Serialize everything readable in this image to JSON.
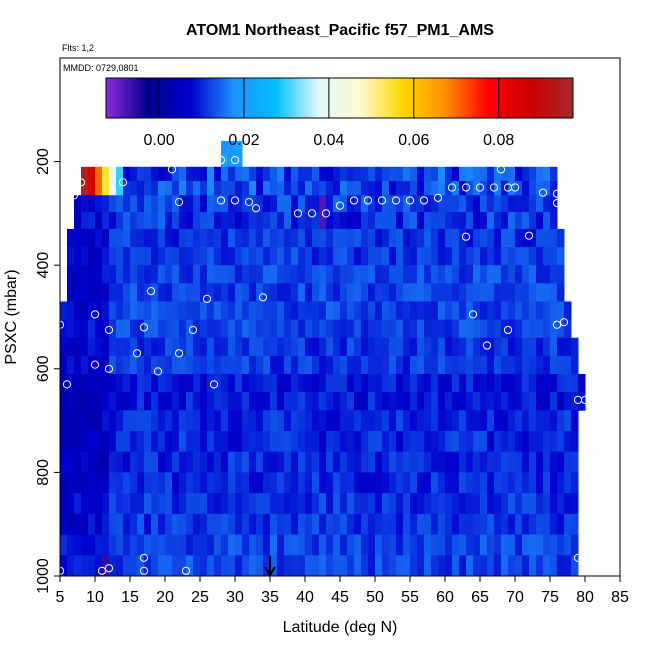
{
  "chart_data": {
    "type": "heatmap",
    "title": "ATOM1 Northeast_Pacific f57_PM1_AMS",
    "flights_note": "Flts: 1,2",
    "date_note": "MMDD: 0729,0801",
    "xlabel": "Latitude (deg N)",
    "ylabel": "PSXC (mbar)",
    "xlim": [
      5,
      85
    ],
    "ylim": [
      1000,
      0
    ],
    "x_ticks": [
      5,
      10,
      15,
      20,
      25,
      30,
      35,
      40,
      45,
      50,
      55,
      60,
      65,
      70,
      75,
      80,
      85
    ],
    "y_ticks": [
      200,
      400,
      600,
      800,
      1000
    ],
    "colorbar": {
      "range": [
        -0.0125,
        0.0975
      ],
      "ticks": [
        0.0,
        0.02,
        0.04,
        0.06,
        0.08
      ],
      "tick_labels": [
        "0.00",
        "0.02",
        "0.04",
        "0.06",
        "0.08"
      ],
      "stops": [
        "#8a2be2",
        "#00008b",
        "#0000cd",
        "#1e90ff",
        "#00bfff",
        "#e0f8ff",
        "#fffacd",
        "#ffd700",
        "#ff8c00",
        "#ff0000",
        "#cc0000",
        "#a52a2a"
      ]
    },
    "arrow_x": 35,
    "bands": [
      {
        "p0": 160,
        "p1": 210,
        "x0": 28,
        "x1": 31,
        "base": 0.02,
        "var": 0.003
      },
      {
        "p0": 210,
        "p1": 265,
        "x0": 8,
        "x1": 76,
        "base": 0.012,
        "var": 0.005
      },
      {
        "p0": 265,
        "p1": 330,
        "x0": 7,
        "x1": 76,
        "base": 0.011,
        "var": 0.004
      },
      {
        "p0": 330,
        "p1": 400,
        "x0": 6,
        "x1": 77,
        "base": 0.011,
        "var": 0.003
      },
      {
        "p0": 400,
        "p1": 470,
        "x0": 6,
        "x1": 77,
        "base": 0.012,
        "var": 0.003
      },
      {
        "p0": 470,
        "p1": 540,
        "x0": 5,
        "x1": 78,
        "base": 0.012,
        "var": 0.003
      },
      {
        "p0": 540,
        "p1": 610,
        "x0": 5,
        "x1": 79,
        "base": 0.011,
        "var": 0.003
      },
      {
        "p0": 610,
        "p1": 680,
        "x0": 5,
        "x1": 80,
        "base": 0.009,
        "var": 0.003
      },
      {
        "p0": 680,
        "p1": 760,
        "x0": 5,
        "x1": 79,
        "base": 0.01,
        "var": 0.003
      },
      {
        "p0": 760,
        "p1": 840,
        "x0": 5,
        "x1": 79,
        "base": 0.01,
        "var": 0.003
      },
      {
        "p0": 840,
        "p1": 920,
        "x0": 5,
        "x1": 79,
        "base": 0.011,
        "var": 0.003
      },
      {
        "p0": 920,
        "p1": 1000,
        "x0": 5,
        "x1": 79,
        "base": 0.012,
        "var": 0.003
      }
    ],
    "special_cells": [
      {
        "x": 8,
        "p": 235,
        "value": 0.095
      },
      {
        "x": 9,
        "p": 235,
        "value": 0.085
      },
      {
        "x": 10,
        "p": 235,
        "value": 0.07
      },
      {
        "x": 11,
        "p": 235,
        "value": 0.055
      },
      {
        "x": 12,
        "p": 235,
        "value": 0.04
      },
      {
        "x": 13,
        "p": 235,
        "value": 0.03
      },
      {
        "x": 42,
        "p": 290,
        "value": -0.008
      },
      {
        "x": 11,
        "p": 980,
        "value": -0.006
      }
    ],
    "points": [
      {
        "x": 8,
        "p": 240
      },
      {
        "x": 7,
        "p": 265
      },
      {
        "x": 14,
        "p": 240
      },
      {
        "x": 21,
        "p": 215
      },
      {
        "x": 28,
        "p": 197
      },
      {
        "x": 30,
        "p": 197
      },
      {
        "x": 22,
        "p": 278
      },
      {
        "x": 28,
        "p": 275
      },
      {
        "x": 30,
        "p": 275
      },
      {
        "x": 32,
        "p": 278
      },
      {
        "x": 33,
        "p": 290
      },
      {
        "x": 39,
        "p": 300
      },
      {
        "x": 41,
        "p": 300
      },
      {
        "x": 43,
        "p": 300
      },
      {
        "x": 45,
        "p": 285
      },
      {
        "x": 47,
        "p": 275
      },
      {
        "x": 49,
        "p": 275
      },
      {
        "x": 51,
        "p": 275
      },
      {
        "x": 53,
        "p": 275
      },
      {
        "x": 55,
        "p": 275
      },
      {
        "x": 57,
        "p": 275
      },
      {
        "x": 59,
        "p": 270
      },
      {
        "x": 61,
        "p": 250
      },
      {
        "x": 63,
        "p": 250
      },
      {
        "x": 65,
        "p": 250
      },
      {
        "x": 67,
        "p": 250
      },
      {
        "x": 69,
        "p": 250
      },
      {
        "x": 70,
        "p": 250
      },
      {
        "x": 68,
        "p": 215
      },
      {
        "x": 74,
        "p": 260
      },
      {
        "x": 76,
        "p": 262
      },
      {
        "x": 76,
        "p": 280
      },
      {
        "x": 63,
        "p": 345
      },
      {
        "x": 72,
        "p": 343
      },
      {
        "x": 18,
        "p": 450
      },
      {
        "x": 26,
        "p": 465
      },
      {
        "x": 34,
        "p": 462
      },
      {
        "x": 10,
        "p": 495
      },
      {
        "x": 64,
        "p": 495
      },
      {
        "x": 5,
        "p": 515
      },
      {
        "x": 12,
        "p": 525
      },
      {
        "x": 17,
        "p": 520
      },
      {
        "x": 24,
        "p": 525
      },
      {
        "x": 69,
        "p": 525
      },
      {
        "x": 76,
        "p": 515
      },
      {
        "x": 77,
        "p": 510
      },
      {
        "x": 66,
        "p": 555
      },
      {
        "x": 16,
        "p": 570
      },
      {
        "x": 22,
        "p": 570
      },
      {
        "x": 10,
        "p": 592
      },
      {
        "x": 12,
        "p": 600
      },
      {
        "x": 19,
        "p": 605
      },
      {
        "x": 6,
        "p": 630
      },
      {
        "x": 27,
        "p": 630
      },
      {
        "x": 79,
        "p": 660
      },
      {
        "x": 80,
        "p": 660
      },
      {
        "x": 79,
        "p": 965
      },
      {
        "x": 17,
        "p": 965
      },
      {
        "x": 5,
        "p": 990
      },
      {
        "x": 11,
        "p": 990
      },
      {
        "x": 12,
        "p": 985
      },
      {
        "x": 17,
        "p": 990
      },
      {
        "x": 23,
        "p": 990
      }
    ]
  }
}
